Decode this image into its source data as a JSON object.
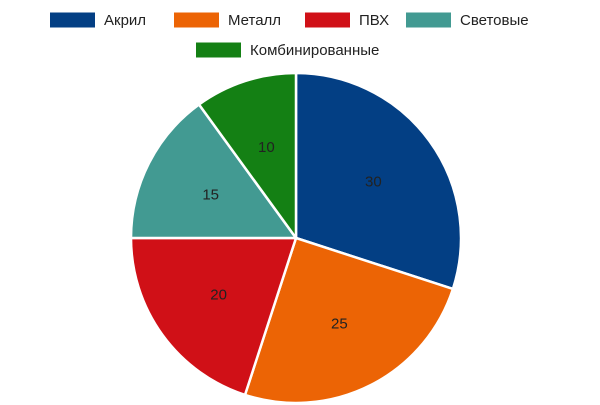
{
  "chart_data": {
    "type": "pie",
    "title": "",
    "categories": [
      "Акрил",
      "Металл",
      "ПВХ",
      "Световые",
      "Комбинированные"
    ],
    "values": [
      30,
      25,
      20,
      15,
      10
    ],
    "colors": [
      "#033F84",
      "#EC6405",
      "#D01017",
      "#429A92",
      "#148014"
    ],
    "legend_position": "top",
    "start_angle_deg": 0,
    "direction": "clockwise"
  }
}
